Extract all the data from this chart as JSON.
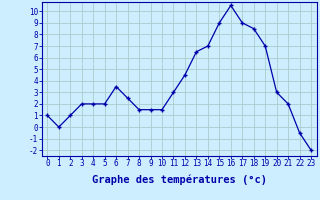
{
  "hours": [
    0,
    1,
    2,
    3,
    4,
    5,
    6,
    7,
    8,
    9,
    10,
    11,
    12,
    13,
    14,
    15,
    16,
    17,
    18,
    19,
    20,
    21,
    22,
    23
  ],
  "temperatures": [
    1,
    0,
    1,
    2,
    2,
    2,
    3.5,
    2.5,
    1.5,
    1.5,
    1.5,
    3,
    4.5,
    6.5,
    7,
    9,
    10.5,
    9,
    8.5,
    7,
    3,
    2,
    -0.5,
    -2
  ],
  "xlabel": "Graphe des températures (°c)",
  "bg_color": "#cceeff",
  "grid_color": "#aacccc",
  "line_color": "#0000aa",
  "xlim_min": -0.5,
  "xlim_max": 23.5,
  "ylim_min": -2.5,
  "ylim_max": 10.8,
  "yticks": [
    -2,
    -1,
    0,
    1,
    2,
    3,
    4,
    5,
    6,
    7,
    8,
    9,
    10
  ],
  "xticks": [
    0,
    1,
    2,
    3,
    4,
    5,
    6,
    7,
    8,
    9,
    10,
    11,
    12,
    13,
    14,
    15,
    16,
    17,
    18,
    19,
    20,
    21,
    22,
    23
  ],
  "tick_fontsize": 5.5,
  "xlabel_fontsize": 7.5
}
